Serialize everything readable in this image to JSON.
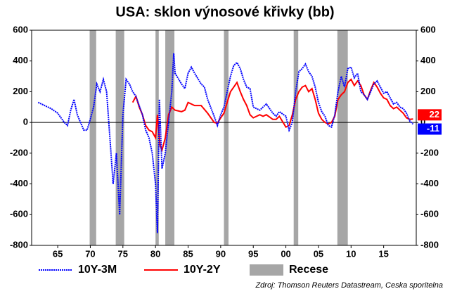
{
  "chart_data": {
    "type": "line",
    "title": "USA: sklon výnosové křivky (bb)",
    "source": "Zdroj: Thomson Reuters Datastream, Ceska sporitelna",
    "xlim": [
      1961,
      2020
    ],
    "xticks": [
      {
        "value": 1965,
        "label": "65"
      },
      {
        "value": 1970,
        "label": "70"
      },
      {
        "value": 1975,
        "label": "75"
      },
      {
        "value": 1980,
        "label": "80"
      },
      {
        "value": 1985,
        "label": "85"
      },
      {
        "value": 1990,
        "label": "90"
      },
      {
        "value": 1995,
        "label": "95"
      },
      {
        "value": 2000,
        "label": "00"
      },
      {
        "value": 2005,
        "label": "05"
      },
      {
        "value": 2010,
        "label": "10"
      },
      {
        "value": 2015,
        "label": "15"
      }
    ],
    "ylim": [
      -800,
      600
    ],
    "yticks": [
      -800,
      -600,
      -400,
      -200,
      0,
      200,
      400,
      600
    ],
    "y2lim": [
      -800,
      600
    ],
    "y2ticks": [
      -800,
      -600,
      -400,
      -200,
      0,
      200,
      400,
      600
    ],
    "recessions": {
      "name": "Recese",
      "color": "#a6a6a6",
      "spans": [
        [
          1969.9,
          1970.9
        ],
        [
          1973.9,
          1975.2
        ],
        [
          1980.0,
          1980.5
        ],
        [
          1981.5,
          1982.9
        ],
        [
          1990.5,
          1991.2
        ],
        [
          2001.2,
          2001.9
        ],
        [
          2007.9,
          2009.5
        ]
      ]
    },
    "series": [
      {
        "name": "10Y-3M",
        "color": "#0000ff",
        "dotted": true,
        "last_value": -11,
        "x": [
          1962,
          1963,
          1964,
          1965,
          1966,
          1966.5,
          1967,
          1967.5,
          1968,
          1969,
          1969.5,
          1970,
          1970.5,
          1971,
          1971.5,
          1972,
          1972.5,
          1973,
          1973.5,
          1974,
          1974.5,
          1975,
          1975.5,
          1976,
          1976.5,
          1977,
          1978,
          1978.5,
          1979,
          1979.5,
          1980,
          1980.3,
          1980.6,
          1981,
          1981.5,
          1982,
          1982.5,
          1982.8,
          1983,
          1984,
          1984.5,
          1985,
          1985.5,
          1986,
          1987,
          1987.5,
          1988,
          1989,
          1989.5,
          1990,
          1990.5,
          1991,
          1991.5,
          1992,
          1992.5,
          1993,
          1993.5,
          1994,
          1994.5,
          1995,
          1996,
          1996.5,
          1997,
          1998,
          1998.5,
          1999,
          2000,
          2000.5,
          2001,
          2001.5,
          2002,
          2002.5,
          2003,
          2003.5,
          2004,
          2004.5,
          2005,
          2005.5,
          2006,
          2006.5,
          2007,
          2007.5,
          2008,
          2008.5,
          2009,
          2009.5,
          2010,
          2010.5,
          2011,
          2011.5,
          2012,
          2012.5,
          2013,
          2013.5,
          2014,
          2014.5,
          2015,
          2015.5,
          2016,
          2016.5,
          2017,
          2017.5,
          2018,
          2018.5,
          2019,
          2019.5
        ],
        "values": [
          130,
          110,
          90,
          60,
          0,
          -20,
          80,
          150,
          50,
          -50,
          -50,
          20,
          100,
          250,
          200,
          280,
          200,
          -100,
          -400,
          -200,
          -600,
          50,
          280,
          250,
          200,
          170,
          50,
          -50,
          -100,
          -200,
          -400,
          -720,
          150,
          -300,
          -200,
          0,
          200,
          450,
          320,
          250,
          220,
          320,
          360,
          320,
          250,
          230,
          150,
          40,
          -20,
          50,
          100,
          200,
          300,
          370,
          390,
          350,
          280,
          230,
          220,
          100,
          80,
          100,
          120,
          60,
          40,
          70,
          40,
          -50,
          0,
          200,
          330,
          350,
          380,
          330,
          300,
          230,
          130,
          70,
          40,
          -20,
          -30,
          50,
          200,
          300,
          230,
          350,
          360,
          290,
          320,
          200,
          180,
          150,
          200,
          250,
          270,
          230,
          190,
          200,
          160,
          120,
          130,
          100,
          90,
          60,
          10,
          -11
        ]
      },
      {
        "name": "10Y-2Y",
        "color": "#ff0000",
        "dotted": false,
        "last_value": 22,
        "x": [
          1976.5,
          1977,
          1977.5,
          1978,
          1978.5,
          1979,
          1979.5,
          1980,
          1980.3,
          1980.7,
          1981,
          1981.5,
          1982,
          1982.5,
          1983,
          1984,
          1984.5,
          1985,
          1986,
          1987,
          1988,
          1989,
          1989.5,
          1990,
          1990.5,
          1991,
          1991.5,
          1992,
          1992.5,
          1993,
          1993.5,
          1994,
          1994.5,
          1995,
          1996,
          1996.5,
          1997,
          1998,
          1998.5,
          1999,
          2000,
          2000.5,
          2001,
          2001.5,
          2002,
          2002.5,
          2003,
          2003.5,
          2004,
          2004.5,
          2005,
          2005.5,
          2006,
          2006.5,
          2007,
          2007.5,
          2008,
          2008.5,
          2009,
          2009.5,
          2010,
          2010.5,
          2011,
          2011.5,
          2012,
          2012.5,
          2013,
          2013.5,
          2014,
          2014.5,
          2015,
          2015.5,
          2016,
          2016.5,
          2017,
          2017.5,
          2018,
          2018.5,
          2019,
          2019.5
        ],
        "values": [
          130,
          170,
          100,
          50,
          -20,
          -50,
          -60,
          -100,
          50,
          -150,
          -180,
          -100,
          50,
          100,
          80,
          70,
          80,
          130,
          110,
          110,
          60,
          0,
          -5,
          30,
          60,
          130,
          200,
          230,
          260,
          200,
          150,
          110,
          50,
          30,
          50,
          40,
          50,
          20,
          20,
          40,
          -30,
          -20,
          50,
          150,
          200,
          230,
          240,
          200,
          220,
          150,
          60,
          20,
          0,
          -10,
          0,
          40,
          150,
          180,
          200,
          260,
          280,
          240,
          270,
          240,
          180,
          150,
          210,
          260,
          230,
          190,
          160,
          150,
          110,
          90,
          100,
          80,
          60,
          30,
          20,
          22
        ]
      }
    ]
  }
}
